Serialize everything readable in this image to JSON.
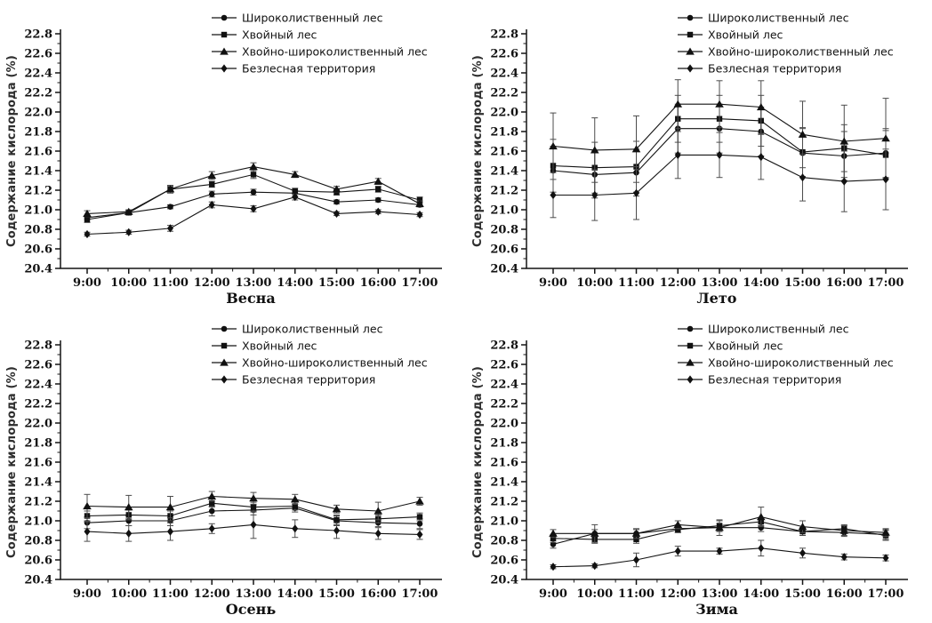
{
  "figure": {
    "background": "#ffffff",
    "line_color": "#141414",
    "error_bar_color": "#4c4c4c",
    "marker_color": "#111111"
  },
  "chart_data": [
    {
      "type": "line",
      "title": "Весна",
      "ylabel": "Содержание кислорода (%)",
      "ylim": [
        20.4,
        22.8
      ],
      "ytick_step": 0.2,
      "grid": false,
      "error_bars": true,
      "legend_position": "top-center-inside",
      "x_categories": [
        "9:00",
        "10:00",
        "11:00",
        "12:00",
        "13:00",
        "14:00",
        "15:00",
        "16:00",
        "17:00"
      ],
      "series": [
        {
          "name": "Широколиственный лес",
          "marker": "circle",
          "values": [
            20.92,
            20.97,
            21.03,
            21.16,
            21.18,
            21.17,
            21.08,
            21.1,
            21.05
          ],
          "errors": [
            0.02,
            0.02,
            0.02,
            0.03,
            0.03,
            0.03,
            0.02,
            0.02,
            0.02
          ]
        },
        {
          "name": "Хвойный лес",
          "marker": "square",
          "values": [
            20.9,
            20.97,
            21.21,
            21.26,
            21.36,
            21.19,
            21.18,
            21.21,
            21.1
          ],
          "errors": [
            0.03,
            0.02,
            0.04,
            0.03,
            0.04,
            0.03,
            0.03,
            0.03,
            0.03
          ]
        },
        {
          "name": "Хвойно-широколиственный лес",
          "marker": "triangle",
          "values": [
            20.96,
            20.98,
            21.21,
            21.35,
            21.44,
            21.36,
            21.21,
            21.29,
            21.06
          ],
          "errors": [
            0.03,
            0.02,
            0.03,
            0.04,
            0.04,
            0.03,
            0.03,
            0.03,
            0.03
          ]
        },
        {
          "name": "Безлесная территория",
          "marker": "diamond",
          "values": [
            20.75,
            20.77,
            20.81,
            21.05,
            21.01,
            21.13,
            20.96,
            20.98,
            20.95
          ],
          "errors": [
            0.02,
            0.02,
            0.03,
            0.03,
            0.03,
            0.03,
            0.02,
            0.02,
            0.02
          ]
        }
      ]
    },
    {
      "type": "line",
      "title": "Лето",
      "ylabel": "Содержание кислорода (%)",
      "ylim": [
        20.4,
        22.8
      ],
      "ytick_step": 0.2,
      "grid": false,
      "error_bars": true,
      "legend_position": "top-center-inside",
      "x_categories": [
        "9:00",
        "10:00",
        "11:00",
        "12:00",
        "13:00",
        "14:00",
        "15:00",
        "16:00",
        "17:00"
      ],
      "series": [
        {
          "name": "Широколиственный лес",
          "marker": "circle",
          "values": [
            21.4,
            21.36,
            21.38,
            21.83,
            21.83,
            21.8,
            21.58,
            21.55,
            21.58
          ],
          "errors": [
            0.25,
            0.24,
            0.24,
            0.25,
            0.25,
            0.25,
            0.25,
            0.25,
            0.25
          ]
        },
        {
          "name": "Хвойный лес",
          "marker": "square",
          "values": [
            21.45,
            21.43,
            21.44,
            21.93,
            21.93,
            21.91,
            21.59,
            21.63,
            21.56
          ],
          "errors": [
            0.27,
            0.26,
            0.26,
            0.24,
            0.24,
            0.26,
            0.25,
            0.24,
            0.25
          ]
        },
        {
          "name": "Хвойно-широколиственный лес",
          "marker": "triangle",
          "values": [
            21.65,
            21.61,
            21.62,
            22.08,
            22.08,
            22.05,
            21.77,
            21.7,
            21.73
          ],
          "errors": [
            0.34,
            0.33,
            0.34,
            0.25,
            0.24,
            0.27,
            0.34,
            0.37,
            0.41
          ]
        },
        {
          "name": "Безлесная территория",
          "marker": "diamond",
          "values": [
            21.15,
            21.15,
            21.17,
            21.56,
            21.56,
            21.54,
            21.33,
            21.29,
            21.31
          ],
          "errors": [
            0.23,
            0.26,
            0.27,
            0.24,
            0.23,
            0.23,
            0.24,
            0.31,
            0.31
          ]
        }
      ]
    },
    {
      "type": "line",
      "title": "Осень",
      "ylabel": "Содержание кислорода (%)",
      "ylim": [
        20.4,
        22.8
      ],
      "ytick_step": 0.2,
      "grid": false,
      "error_bars": true,
      "legend_position": "top-center-inside",
      "x_categories": [
        "9:00",
        "10:00",
        "11:00",
        "12:00",
        "13:00",
        "14:00",
        "15:00",
        "16:00",
        "17:00"
      ],
      "series": [
        {
          "name": "Широколиственный лес",
          "marker": "circle",
          "values": [
            20.98,
            21.0,
            21.0,
            21.1,
            21.11,
            21.13,
            21.0,
            20.98,
            20.97
          ],
          "errors": [
            0.06,
            0.05,
            0.05,
            0.05,
            0.05,
            0.04,
            0.05,
            0.04,
            0.05
          ]
        },
        {
          "name": "Хвойный лес",
          "marker": "square",
          "values": [
            21.05,
            21.06,
            21.05,
            21.18,
            21.14,
            21.15,
            21.01,
            21.02,
            21.04
          ],
          "errors": [
            0.05,
            0.05,
            0.05,
            0.04,
            0.05,
            0.04,
            0.05,
            0.04,
            0.04
          ]
        },
        {
          "name": "Хвойно-широколиственный лес",
          "marker": "triangle",
          "values": [
            21.15,
            21.14,
            21.14,
            21.25,
            21.23,
            21.22,
            21.12,
            21.1,
            21.2
          ],
          "errors": [
            0.12,
            0.12,
            0.11,
            0.05,
            0.06,
            0.05,
            0.04,
            0.09,
            0.04
          ]
        },
        {
          "name": "Безлесная территория",
          "marker": "diamond",
          "values": [
            20.89,
            20.87,
            20.89,
            20.92,
            20.96,
            20.92,
            20.9,
            20.87,
            20.86
          ],
          "errors": [
            0.1,
            0.08,
            0.09,
            0.05,
            0.14,
            0.09,
            0.08,
            0.06,
            0.05
          ]
        }
      ]
    },
    {
      "type": "line",
      "title": "Зима",
      "ylabel": "Содержание кислорода (%)",
      "ylim": [
        20.4,
        22.8
      ],
      "ytick_step": 0.2,
      "grid": false,
      "error_bars": true,
      "legend_position": "top-center-inside",
      "x_categories": [
        "9:00",
        "10:00",
        "11:00",
        "12:00",
        "13:00",
        "14:00",
        "15:00",
        "16:00",
        "17:00"
      ],
      "series": [
        {
          "name": "Широколиственный лес",
          "marker": "circle",
          "values": [
            20.76,
            20.87,
            20.87,
            20.92,
            20.93,
            20.93,
            20.89,
            20.88,
            20.86
          ],
          "errors": [
            0.04,
            0.04,
            0.04,
            0.04,
            0.04,
            0.04,
            0.04,
            0.04,
            0.05
          ]
        },
        {
          "name": "Хвойный лес",
          "marker": "square",
          "values": [
            20.82,
            20.81,
            20.81,
            20.91,
            20.95,
            20.99,
            20.89,
            20.92,
            20.85
          ],
          "errors": [
            0.04,
            0.04,
            0.04,
            0.03,
            0.05,
            0.04,
            0.04,
            0.04,
            0.05
          ]
        },
        {
          "name": "Хвойно-широколиственный лес",
          "marker": "triangle",
          "values": [
            20.87,
            20.87,
            20.87,
            20.96,
            20.93,
            21.04,
            20.94,
            20.9,
            20.88
          ],
          "errors": [
            0.04,
            0.09,
            0.05,
            0.04,
            0.08,
            0.1,
            0.06,
            0.05,
            0.04
          ]
        },
        {
          "name": "Безлесная территория",
          "marker": "diamond",
          "values": [
            20.53,
            20.54,
            20.6,
            20.69,
            20.69,
            20.72,
            20.67,
            20.63,
            20.62
          ],
          "errors": [
            0.02,
            0.02,
            0.07,
            0.05,
            0.03,
            0.08,
            0.05,
            0.03,
            0.03
          ]
        }
      ]
    }
  ]
}
